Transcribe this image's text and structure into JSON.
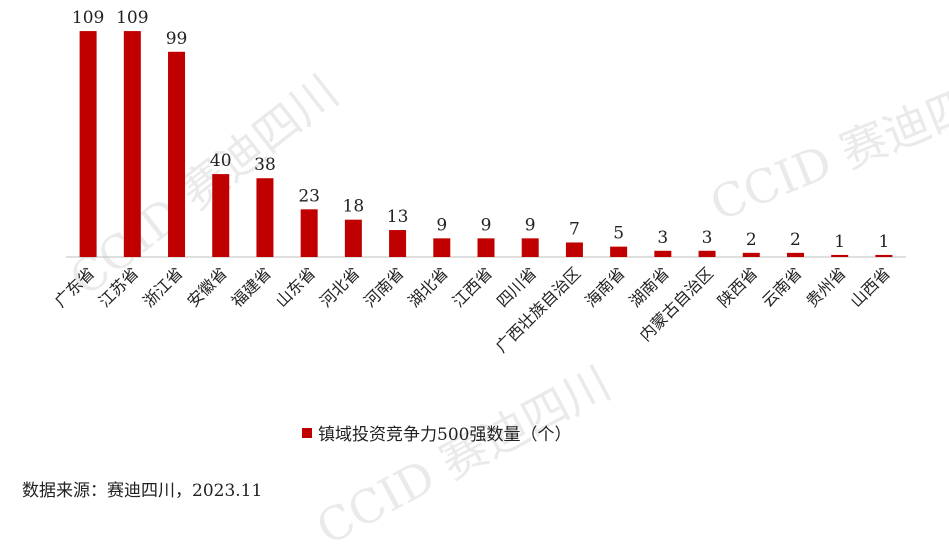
{
  "chart_data": {
    "type": "bar",
    "categories": [
      "广东省",
      "江苏省",
      "浙江省",
      "安徽省",
      "福建省",
      "山东省",
      "河北省",
      "河南省",
      "湖北省",
      "江西省",
      "四川省",
      "广西壮族自治区",
      "海南省",
      "湖南省",
      "内蒙古自治区",
      "陕西省",
      "云南省",
      "贵州省",
      "山西省"
    ],
    "series": [
      {
        "name": "镇域投资竞争力500强数量（个）",
        "values": [
          109,
          109,
          99,
          40,
          38,
          23,
          18,
          13,
          9,
          9,
          9,
          7,
          5,
          3,
          3,
          2,
          2,
          1,
          1
        ]
      }
    ],
    "ylim": [
      0,
      110
    ],
    "grid": false,
    "legend_position": "bottom",
    "bar_color": "#c00000"
  },
  "watermark": "CCID 赛迪四川",
  "source": "数据来源：赛迪四川，2023.11"
}
